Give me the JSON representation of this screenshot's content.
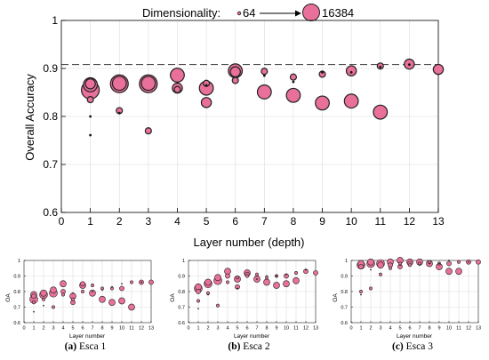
{
  "colors": {
    "marker_fill": "#e8709a",
    "marker_stroke": "#222222",
    "reference_line": "#333333",
    "grid": "#dddddd"
  },
  "legend": {
    "prefix": "Dimensionality:",
    "min_label": "64",
    "max_label": "16384"
  },
  "chart_data": [
    {
      "id": "main",
      "type": "scatter",
      "title": "",
      "xlabel": "Layer number (depth)",
      "ylabel": "Overall Accuracy",
      "xlim": [
        0,
        13
      ],
      "ylim": [
        0.6,
        1.0
      ],
      "xticks": [
        "0",
        "1",
        "2",
        "3",
        "4",
        "5",
        "6",
        "7",
        "8",
        "9",
        "10",
        "11",
        "12",
        "13"
      ],
      "yticks": [
        "0.6",
        "0.7",
        "0.8",
        "0.9",
        "1"
      ],
      "grid": true,
      "reference_line": 0.908,
      "series": [
        {
          "dim": 16384,
          "points": [
            [
              1,
              0.855
            ],
            [
              2,
              0.868
            ],
            [
              3,
              0.868
            ]
          ]
        },
        {
          "dim": 4096,
          "points": [
            [
              1,
              0.866
            ],
            [
              2,
              0.869
            ],
            [
              3,
              0.869
            ],
            [
              4,
              0.886
            ],
            [
              5,
              0.859
            ],
            [
              6,
              0.895
            ],
            [
              7,
              0.851
            ],
            [
              8,
              0.844
            ],
            [
              9,
              0.828
            ],
            [
              10,
              0.832
            ],
            [
              11,
              0.809
            ]
          ]
        },
        {
          "dim": 1024,
          "points": [
            [
              1,
              0.868
            ],
            [
              4,
              0.859
            ],
            [
              5,
              0.829
            ],
            [
              6,
              0.893
            ],
            [
              10,
              0.895
            ],
            [
              12,
              0.909
            ],
            [
              13,
              0.898
            ]
          ]
        },
        {
          "dim": 256,
          "points": [
            [
              1,
              0.835
            ],
            [
              2,
              0.812
            ],
            [
              3,
              0.77
            ],
            [
              4,
              0.856
            ],
            [
              5,
              0.869
            ],
            [
              6,
              0.875
            ],
            [
              7,
              0.894
            ],
            [
              8,
              0.882
            ],
            [
              9,
              0.888
            ],
            [
              11,
              0.905
            ]
          ]
        },
        {
          "dim": 64,
          "points": [
            [
              1,
              0.761
            ],
            [
              1,
              0.8
            ],
            [
              2,
              0.807
            ],
            [
              5,
              0.865
            ],
            [
              7,
              0.885
            ],
            [
              8,
              0.872
            ],
            [
              9,
              0.892
            ],
            [
              10,
              0.892
            ],
            [
              11,
              0.903
            ],
            [
              12,
              0.908
            ]
          ]
        }
      ]
    },
    {
      "id": "esca1",
      "type": "scatter",
      "caption_label": "(a)",
      "caption_text": "Esca 1",
      "xlabel": "Layer number",
      "ylabel": "OA",
      "xlim": [
        0,
        13
      ],
      "ylim": [
        0.6,
        1.0
      ],
      "xticks": [
        "0",
        "1",
        "2",
        "3",
        "4",
        "5",
        "6",
        "7",
        "8",
        "9",
        "10",
        "11",
        "12",
        "13"
      ],
      "yticks": [
        "0.6",
        "0.7",
        "0.8",
        "0.9",
        "1"
      ],
      "series": [
        {
          "dim": 16384,
          "points": [
            [
              1,
              0.75
            ],
            [
              2,
              0.78
            ],
            [
              3,
              0.79
            ]
          ]
        },
        {
          "dim": 4096,
          "points": [
            [
              1,
              0.78
            ],
            [
              2,
              0.79
            ],
            [
              3,
              0.81
            ],
            [
              4,
              0.85
            ],
            [
              5,
              0.77
            ],
            [
              6,
              0.84
            ],
            [
              7,
              0.79
            ],
            [
              8,
              0.75
            ],
            [
              9,
              0.73
            ],
            [
              10,
              0.74
            ],
            [
              11,
              0.7
            ]
          ]
        },
        {
          "dim": 1024,
          "points": [
            [
              1,
              0.77
            ],
            [
              4,
              0.8
            ],
            [
              5,
              0.73
            ],
            [
              6,
              0.85
            ],
            [
              10,
              0.82
            ],
            [
              12,
              0.86
            ],
            [
              13,
              0.86
            ]
          ]
        },
        {
          "dim": 256,
          "points": [
            [
              1,
              0.73
            ],
            [
              2,
              0.75
            ],
            [
              3,
              0.7
            ],
            [
              4,
              0.78
            ],
            [
              5,
              0.75
            ],
            [
              6,
              0.8
            ],
            [
              7,
              0.84
            ],
            [
              8,
              0.82
            ],
            [
              9,
              0.82
            ],
            [
              11,
              0.86
            ]
          ]
        },
        {
          "dim": 64,
          "points": [
            [
              1,
              0.67
            ],
            [
              2,
              0.71
            ],
            [
              5,
              0.79
            ],
            [
              7,
              0.8
            ],
            [
              8,
              0.81
            ],
            [
              9,
              0.83
            ],
            [
              10,
              0.85
            ],
            [
              12,
              0.86
            ]
          ]
        }
      ]
    },
    {
      "id": "esca2",
      "type": "scatter",
      "caption_label": "(b)",
      "caption_text": "Esca 2",
      "xlabel": "Layer number",
      "ylabel": "OA",
      "xlim": [
        0,
        13
      ],
      "ylim": [
        0.6,
        1.0
      ],
      "xticks": [
        "0",
        "1",
        "2",
        "3",
        "4",
        "5",
        "6",
        "7",
        "8",
        "9",
        "10",
        "11",
        "12",
        "13"
      ],
      "yticks": [
        "0.6",
        "0.7",
        "0.8",
        "0.9",
        "1"
      ],
      "series": [
        {
          "dim": 16384,
          "points": [
            [
              1,
              0.82
            ],
            [
              2,
              0.85
            ],
            [
              3,
              0.87
            ]
          ]
        },
        {
          "dim": 4096,
          "points": [
            [
              1,
              0.83
            ],
            [
              2,
              0.86
            ],
            [
              3,
              0.89
            ],
            [
              4,
              0.93
            ],
            [
              5,
              0.88
            ],
            [
              6,
              0.92
            ],
            [
              7,
              0.88
            ],
            [
              8,
              0.86
            ],
            [
              9,
              0.84
            ],
            [
              10,
              0.85
            ],
            [
              11,
              0.87
            ]
          ]
        },
        {
          "dim": 1024,
          "points": [
            [
              1,
              0.8
            ],
            [
              4,
              0.9
            ],
            [
              5,
              0.83
            ],
            [
              6,
              0.91
            ],
            [
              10,
              0.9
            ],
            [
              12,
              0.93
            ],
            [
              13,
              0.92
            ]
          ]
        },
        {
          "dim": 256,
          "points": [
            [
              1,
              0.74
            ],
            [
              2,
              0.79
            ],
            [
              3,
              0.71
            ],
            [
              4,
              0.86
            ],
            [
              5,
              0.89
            ],
            [
              6,
              0.9
            ],
            [
              7,
              0.91
            ],
            [
              8,
              0.89
            ],
            [
              9,
              0.9
            ],
            [
              11,
              0.92
            ]
          ]
        },
        {
          "dim": 64,
          "points": [
            [
              1,
              0.69
            ],
            [
              2,
              0.78
            ],
            [
              5,
              0.82
            ],
            [
              7,
              0.88
            ],
            [
              8,
              0.9
            ],
            [
              9,
              0.9
            ],
            [
              10,
              0.91
            ],
            [
              12,
              0.94
            ]
          ]
        }
      ]
    },
    {
      "id": "esca3",
      "type": "scatter",
      "caption_label": "(c)",
      "caption_text": "Esca 3",
      "xlabel": "Layer number",
      "ylabel": "OA",
      "xlim": [
        0,
        13
      ],
      "ylim": [
        0.6,
        1.0
      ],
      "xticks": [
        "0",
        "1",
        "2",
        "3",
        "4",
        "5",
        "6",
        "7",
        "8",
        "9",
        "10",
        "11",
        "12",
        "13"
      ],
      "yticks": [
        "0.6",
        "0.7",
        "0.8",
        "0.9",
        "1"
      ],
      "series": [
        {
          "dim": 16384,
          "points": [
            [
              1,
              0.97
            ],
            [
              2,
              0.98
            ],
            [
              3,
              0.98
            ]
          ]
        },
        {
          "dim": 4096,
          "points": [
            [
              1,
              0.98
            ],
            [
              2,
              0.99
            ],
            [
              3,
              0.97
            ],
            [
              4,
              0.99
            ],
            [
              5,
              1.0
            ],
            [
              6,
              0.99
            ],
            [
              7,
              0.99
            ],
            [
              8,
              0.98
            ],
            [
              9,
              0.96
            ],
            [
              10,
              0.93
            ],
            [
              11,
              0.93
            ]
          ]
        },
        {
          "dim": 1024,
          "points": [
            [
              1,
              0.96
            ],
            [
              4,
              0.97
            ],
            [
              5,
              0.96
            ],
            [
              6,
              0.98
            ],
            [
              10,
              0.98
            ],
            [
              12,
              0.99
            ],
            [
              13,
              0.99
            ]
          ]
        },
        {
          "dim": 256,
          "points": [
            [
              1,
              0.8
            ],
            [
              2,
              0.82
            ],
            [
              3,
              0.91
            ],
            [
              4,
              0.95
            ],
            [
              5,
              0.98
            ],
            [
              6,
              0.97
            ],
            [
              7,
              0.98
            ],
            [
              8,
              0.99
            ],
            [
              9,
              0.98
            ],
            [
              11,
              0.99
            ]
          ]
        },
        {
          "dim": 64,
          "points": [
            [
              1,
              0.78
            ],
            [
              2,
              0.94
            ],
            [
              5,
              0.97
            ],
            [
              7,
              0.97
            ],
            [
              8,
              0.98
            ],
            [
              9,
              0.98
            ],
            [
              10,
              1.0
            ],
            [
              12,
              0.99
            ]
          ]
        }
      ]
    }
  ]
}
